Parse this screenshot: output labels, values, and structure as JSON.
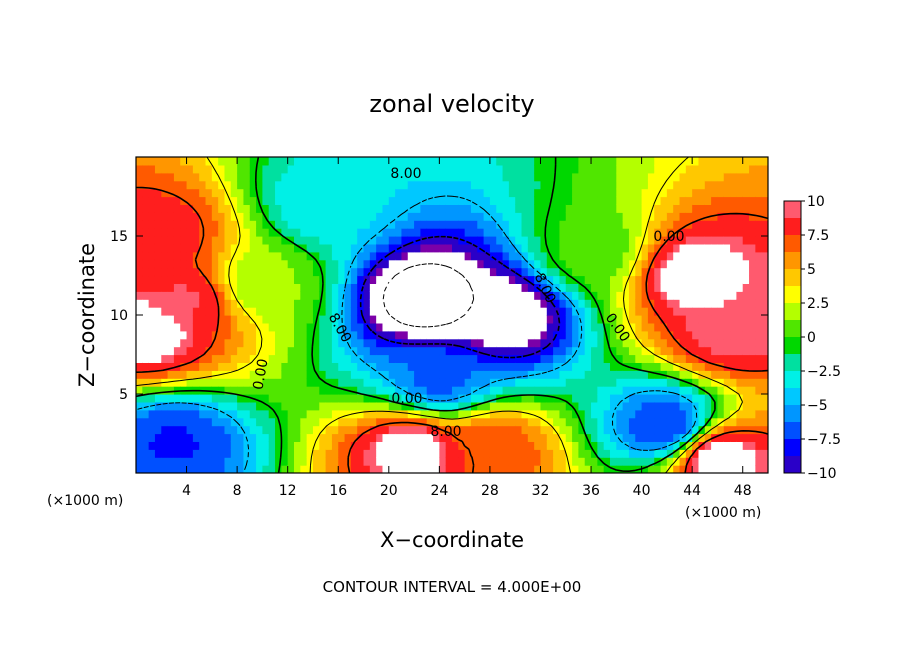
{
  "chart_data": {
    "type": "heatmap",
    "title": "zonal velocity",
    "xlabel": "X−coordinate",
    "ylabel": "Z−coordinate",
    "x_unit": "(×1000 m)",
    "y_unit": "(×1000 m)",
    "xlim": [
      0,
      50
    ],
    "ylim": [
      0,
      20
    ],
    "x_ticks": [
      4,
      8,
      12,
      16,
      20,
      24,
      28,
      32,
      36,
      40,
      44,
      48
    ],
    "y_ticks": [
      5,
      10,
      15
    ],
    "colorbar": {
      "range": [
        -10,
        10
      ],
      "ticks": [
        10,
        7.5,
        5,
        2.5,
        0,
        -2.5,
        -5,
        -7.5,
        -10
      ],
      "tick_labels": [
        "10",
        "7.5",
        "5",
        "2.5",
        "0",
        "−2.5",
        "−5",
        "−7.5",
        "−10"
      ]
    },
    "contour_labels": [
      "0.00",
      "0.00",
      "0.00",
      "0.00",
      "8.00",
      "8.00",
      "8.00",
      "8.00"
    ],
    "contour_interval": "4.000E+00",
    "footer": "CONTOUR INTERVAL = 4.000E+00",
    "field_features": [
      {
        "x": 2,
        "z": 15,
        "value": 9
      },
      {
        "x": 4,
        "z": 11,
        "value": 9.5
      },
      {
        "x": 1,
        "z": 9,
        "value": 11
      },
      {
        "x": 15,
        "z": 17,
        "value": -3
      },
      {
        "x": 23,
        "z": 11,
        "value": -14
      },
      {
        "x": 29,
        "z": 10,
        "value": -12
      },
      {
        "x": 24,
        "z": 6,
        "value": -6
      },
      {
        "x": 22,
        "z": 1.5,
        "value": 11
      },
      {
        "x": 28,
        "z": 1.5,
        "value": 8
      },
      {
        "x": 44,
        "z": 12.5,
        "value": 11
      },
      {
        "x": 47,
        "z": 9,
        "value": 10
      },
      {
        "x": 36,
        "z": 14,
        "value": 1
      },
      {
        "x": 42,
        "z": 3,
        "value": -7
      },
      {
        "x": 46,
        "z": 1,
        "value": 11
      },
      {
        "x": 3,
        "z": 2,
        "value": -7
      },
      {
        "x": 10,
        "z": 12,
        "value": 2
      }
    ]
  }
}
